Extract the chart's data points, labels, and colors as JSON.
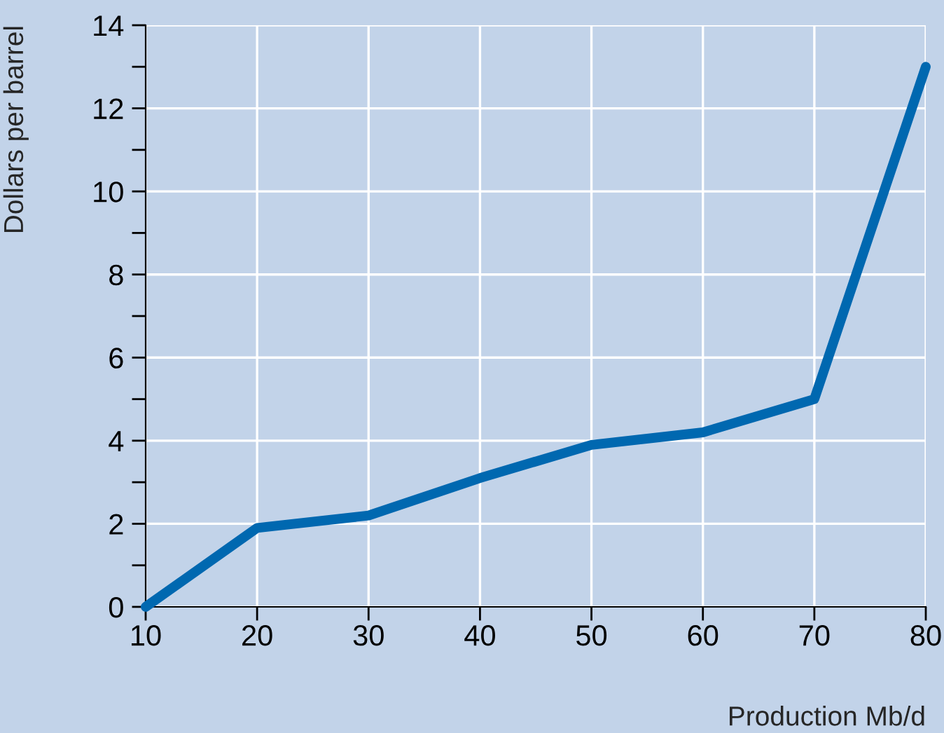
{
  "chart_data": {
    "type": "line",
    "xlabel": "Production Mb/d",
    "ylabel": "Dollars per barrel",
    "x": [
      10,
      20,
      30,
      40,
      50,
      60,
      70,
      80
    ],
    "series": [
      {
        "color": "#0068b0",
        "values": [
          0,
          1.9,
          2.2,
          3.1,
          3.9,
          4.2,
          5.0,
          13.0
        ]
      }
    ],
    "xlim": [
      10,
      80
    ],
    "xticks": [
      10,
      20,
      30,
      40,
      50,
      60,
      70,
      80
    ],
    "ylim": [
      0,
      14
    ],
    "yticks": [
      0,
      {
        "value": 1,
        "label": null
      },
      2,
      {
        "value": 3,
        "label": null
      },
      4,
      {
        "value": 5,
        "label": null
      },
      6,
      {
        "value": 7,
        "label": null
      },
      8,
      {
        "value": 9,
        "label": null
      },
      10,
      {
        "value": 11,
        "label": null
      },
      12,
      {
        "value": 13,
        "label": null
      },
      14
    ],
    "grid": true,
    "marker": "none",
    "line_style": "solid"
  }
}
